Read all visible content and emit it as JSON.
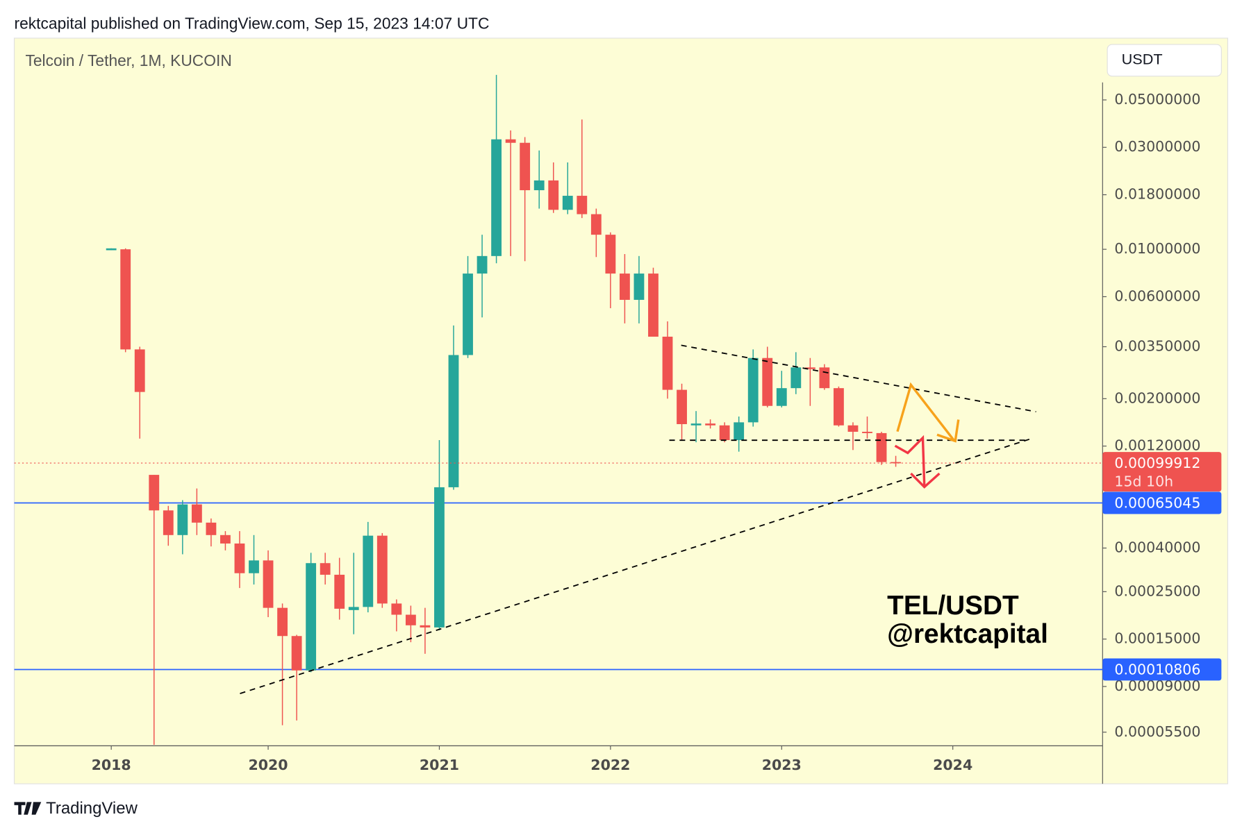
{
  "header": "rektcapital published on TradingView.com, Sep 15, 2023 14:07 UTC",
  "footer": {
    "brand": "TradingView"
  },
  "chart_data": {
    "type": "candlestick",
    "title": "Telcoin / Tether, 1M, KUCOIN",
    "currency": "USDT",
    "annotations": [
      "TEL/USDT",
      "@rektcapital"
    ],
    "countdown": "15d 10h",
    "log_scale": true,
    "grid": false,
    "up_color": "#26a69a",
    "down_color": "#ef5350",
    "xlim": [
      -6.8,
      69.5
    ],
    "xticks": [
      {
        "value": 0,
        "label": "2018"
      },
      {
        "value": 11,
        "label": "2020"
      },
      {
        "value": 23,
        "label": "2021"
      },
      {
        "value": 35,
        "label": "2022"
      },
      {
        "value": 47,
        "label": "2023"
      },
      {
        "value": 59,
        "label": "2024"
      }
    ],
    "ylim": [
      4.75e-05,
      0.0973
    ],
    "yticks": [
      {
        "value": 0.05,
        "label": "0.05000000"
      },
      {
        "value": 0.03,
        "label": "0.03000000"
      },
      {
        "value": 0.018,
        "label": "0.01800000"
      },
      {
        "value": 0.01,
        "label": "0.01000000"
      },
      {
        "value": 0.006,
        "label": "0.00600000"
      },
      {
        "value": 0.0035,
        "label": "0.00350000"
      },
      {
        "value": 0.002,
        "label": "0.00200000"
      },
      {
        "value": 0.0012,
        "label": "0.00120000"
      },
      {
        "value": 0.0004,
        "label": "0.00040000"
      },
      {
        "value": 0.00025,
        "label": "0.00025000"
      },
      {
        "value": 0.00015,
        "label": "0.00015000"
      },
      {
        "value": 9e-05,
        "label": "0.00009000"
      },
      {
        "value": 5.5e-05,
        "label": "0.00005500"
      }
    ],
    "hlines": [
      {
        "value": 0.00065045,
        "color": "#2962ff"
      },
      {
        "value": 0.00010806,
        "color": "#2962ff"
      }
    ],
    "open": [
      0.0099,
      0.01,
      0.0034,
      0.00088,
      0.0006,
      0.00046,
      0.00064,
      0.000526,
      0.00046,
      0.00042,
      0.000305,
      0.00035,
      0.00021,
      0.000155,
      0.000107,
      0.00034,
      0.0003,
      0.000205,
      0.000212,
      0.000457,
      0.00022,
      0.000195,
      0.000174,
      0.00017,
      0.00077,
      0.0032,
      0.0077,
      0.0093,
      0.0327,
      0.0315,
      0.0189,
      0.021,
      0.0153,
      0.0178,
      0.0146,
      0.0117,
      0.0077,
      0.0058,
      0.0077,
      0.0039,
      0.0022,
      0.0015,
      0.00153,
      0.0015,
      0.00128,
      0.00155,
      0.0031,
      0.00185,
      0.00224,
      0.0028,
      0.0028,
      0.00224,
      0.0015,
      0.0014,
      0.00138,
      0.00101
    ],
    "high": [
      0.0101,
      0.0101,
      0.0035,
      0.00088,
      0.00063,
      0.00067,
      0.00076,
      0.00055,
      0.00048,
      0.00048,
      0.00046,
      0.00039,
      0.00022,
      0.000157,
      0.00038,
      0.00038,
      0.00036,
      0.00038,
      0.00053,
      0.00047,
      0.00023,
      0.000215,
      0.00021,
      0.00128,
      0.0044,
      0.0093,
      0.0117,
      0.0655,
      0.036,
      0.0335,
      0.029,
      0.0255,
      0.0255,
      0.0405,
      0.0155,
      0.012,
      0.0095,
      0.0093,
      0.0082,
      0.0046,
      0.00235,
      0.00175,
      0.0016,
      0.00155,
      0.00165,
      0.0034,
      0.0035,
      0.0027,
      0.0033,
      0.0031,
      0.0029,
      0.00228,
      0.00155,
      0.00165,
      0.0014,
      0.00108
    ],
    "low": [
      0.0099,
      0.0033,
      0.0013,
      4.8e-05,
      0.00041,
      0.000374,
      0.00046,
      0.000407,
      0.00039,
      0.00026,
      0.00027,
      0.00019,
      5.93e-05,
      6.24e-05,
      0.000105,
      0.00027,
      0.000185,
      0.000158,
      0.0002,
      0.00021,
      0.000163,
      0.000145,
      0.000128,
      0.000165,
      0.00075,
      0.0031,
      0.0048,
      0.0086,
      0.0093,
      0.0088,
      0.0155,
      0.0148,
      0.0146,
      0.014,
      0.0092,
      0.0053,
      0.0045,
      0.0045,
      0.0039,
      0.002,
      0.00128,
      0.00125,
      0.00145,
      0.00125,
      0.00113,
      0.00148,
      0.00182,
      0.00182,
      0.0021,
      0.00185,
      0.0022,
      0.00148,
      0.00115,
      0.0013,
      0.00098,
      0.00096
    ],
    "close": [
      0.0101,
      0.0034,
      0.00215,
      0.0006,
      0.00046,
      0.00064,
      0.000526,
      0.00046,
      0.00042,
      0.000305,
      0.00035,
      0.00021,
      0.000155,
      0.000107,
      0.00034,
      0.0003,
      0.000208,
      0.000212,
      0.000457,
      0.00022,
      0.000195,
      0.000174,
      0.00017,
      0.00077,
      0.0032,
      0.0077,
      0.0093,
      0.0327,
      0.0315,
      0.0189,
      0.021,
      0.0153,
      0.0178,
      0.0146,
      0.0117,
      0.0077,
      0.0058,
      0.0077,
      0.0039,
      0.0022,
      0.00152,
      0.00153,
      0.0015,
      0.00128,
      0.00155,
      0.0031,
      0.00185,
      0.00224,
      0.0028,
      0.00275,
      0.00224,
      0.0015,
      0.0014,
      0.00138,
      0.00101,
      0.00099912
    ]
  }
}
